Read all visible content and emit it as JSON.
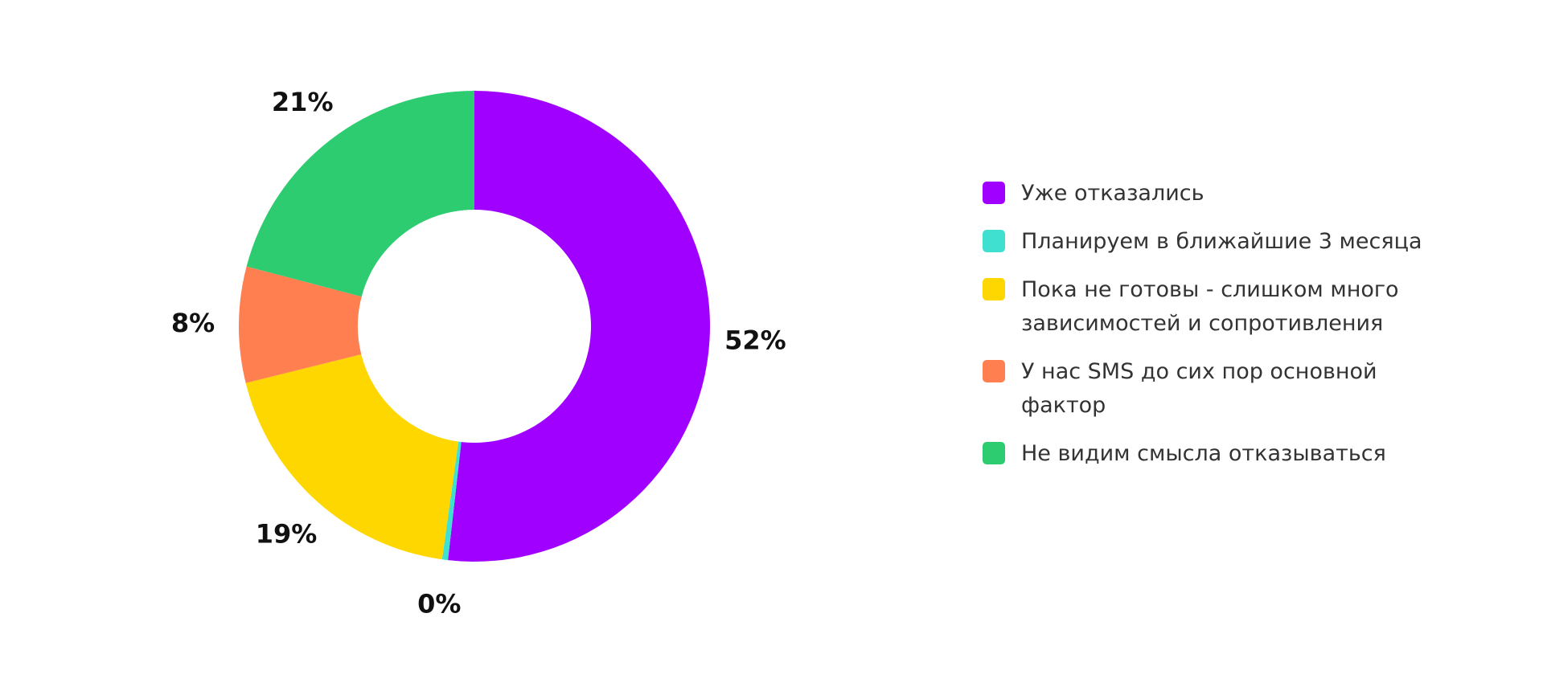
{
  "chart_data": {
    "type": "donut",
    "categories": [
      "Уже отказались",
      "Планируем в ближайшие 3 месяца",
      "Пока не готовы - слишком много зависимостей и сопротивления",
      "У нас SMS до сих пор основной фактор",
      "Не видим смысла отказываться"
    ],
    "values": [
      52,
      0.4,
      19,
      8,
      21
    ],
    "value_labels": [
      "52%",
      "0%",
      "19%",
      "8%",
      "21%"
    ],
    "colors": [
      "#a000ff",
      "#40e0d0",
      "#ffd700",
      "#ff7f50",
      "#2ecc71"
    ],
    "legend": "right"
  }
}
